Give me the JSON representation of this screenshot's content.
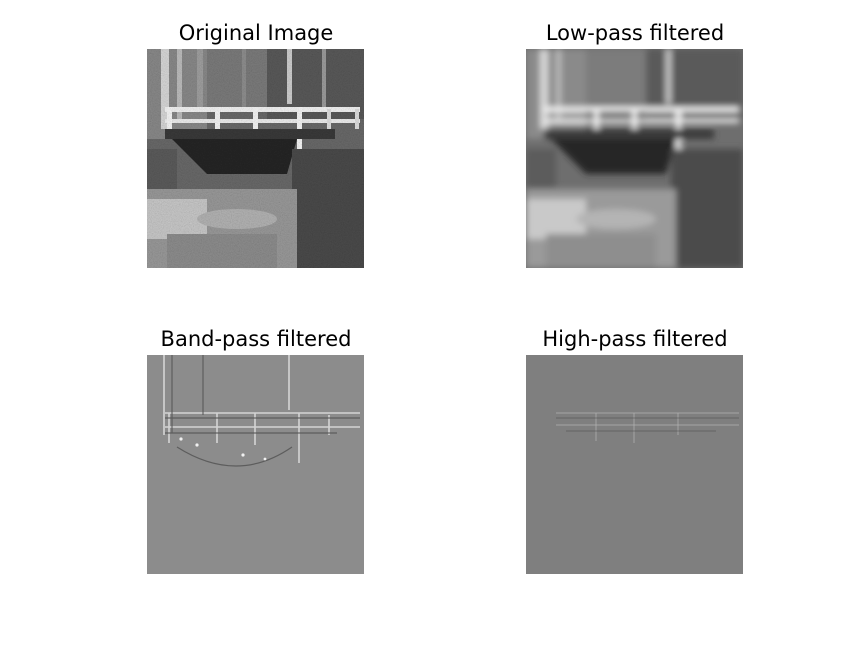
{
  "figure": {
    "panels": [
      {
        "title": "Original Image"
      },
      {
        "title": "Low-pass filtered"
      },
      {
        "title": "Band-pass filtered"
      },
      {
        "title": "High-pass filtered"
      }
    ]
  }
}
